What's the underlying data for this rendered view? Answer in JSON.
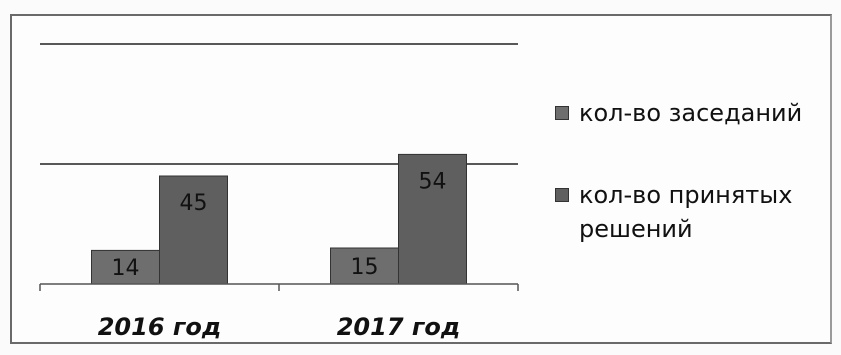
{
  "chart_data": {
    "type": "bar",
    "categories": [
      "2016 год",
      "2017 год"
    ],
    "series": [
      {
        "name": "кол-во заседаний",
        "values": [
          14,
          15
        ],
        "color": "#6e6e6e"
      },
      {
        "name": "кол-во принятых решений",
        "values": [
          45,
          54
        ],
        "color": "#5f5f5f"
      }
    ],
    "ylim": [
      0,
      100
    ],
    "gridlines": [
      50,
      100
    ],
    "legend_position": "right"
  }
}
